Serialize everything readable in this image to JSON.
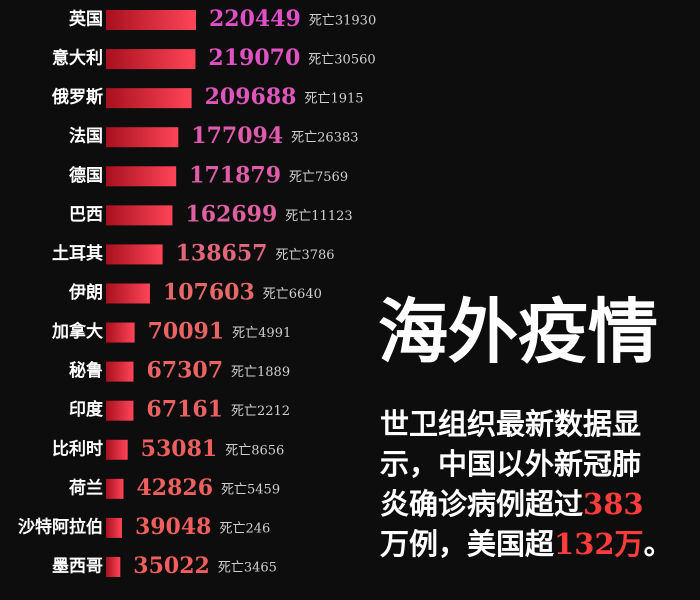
{
  "chart_data": {
    "type": "bar",
    "categories": [
      "英国",
      "意大利",
      "俄罗斯",
      "法国",
      "德国",
      "巴西",
      "土耳其",
      "伊朗",
      "加拿大",
      "秘鲁",
      "印度",
      "比利时",
      "荷兰",
      "沙特阿拉伯",
      "墨西哥"
    ],
    "values": [
      220449,
      219070,
      209688,
      177094,
      171879,
      162699,
      138657,
      107603,
      70091,
      67307,
      67161,
      53081,
      42826,
      39048,
      35022
    ],
    "value_colors": [
      "#e04fc8",
      "#e052c2",
      "#e055bc",
      "#e05aae",
      "#e05ca8",
      "#e060a0",
      "#e2667c",
      "#e66868",
      "#ea6464",
      "#ea6464",
      "#ec6262",
      "#ee6060",
      "#ee6060",
      "#f05e5e",
      "#f05e5e"
    ],
    "death_labels": [
      "死亡31930",
      "死亡30560",
      "死亡1915",
      "死亡26383",
      "死亡7569",
      "死亡11123",
      "死亡3786",
      "死亡6640",
      "死亡4991",
      "死亡1889",
      "死亡2212",
      "死亡8656",
      "死亡5459",
      "死亡246",
      "死亡3465"
    ],
    "bar_colors": [
      "#a8101e",
      "#ff4558"
    ]
  },
  "headline": {
    "title": "海外疫情",
    "lines": [
      [
        {
          "text": "世卫组织最新数据显",
          "color": "#ffffff"
        }
      ],
      [
        {
          "text": "示，中国以外新冠肺",
          "color": "#ffffff"
        }
      ],
      [
        {
          "text": "炎确诊病例超过",
          "color": "#ffffff"
        },
        {
          "text": "383",
          "color": "#ff3c3c"
        }
      ],
      [
        {
          "text": "万例，美国超",
          "color": "#ffffff"
        },
        {
          "text": "132万",
          "color": "#ff3c3c"
        },
        {
          "text": "。",
          "color": "#ffffff"
        }
      ]
    ]
  }
}
